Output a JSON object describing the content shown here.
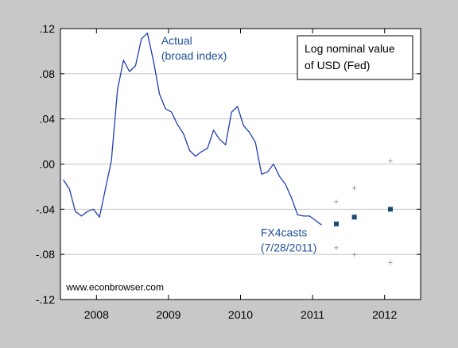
{
  "colors": {
    "outer_background": "#c8c8c8",
    "plot_background": "#ffffff",
    "actual_line": "#1f3fb0",
    "forecast_marker": "#1a4a78",
    "range_marker": "#888888",
    "annotation_text": "#1f4f9a",
    "gridline": "#c4c4c4",
    "axis_text": "#000000"
  },
  "chart_data": {
    "type": "line",
    "title": "",
    "xlabel": "",
    "ylabel": "",
    "ylim": [
      -0.12,
      0.12
    ],
    "y_ticks": [
      0.12,
      0.08,
      0.04,
      0.0,
      -0.04,
      -0.08,
      -0.12
    ],
    "y_tick_labels": [
      ".12",
      ".08",
      ".04",
      ".00",
      "-.04",
      "-.08",
      "-.12"
    ],
    "xlim": [
      2007.5,
      2012.5
    ],
    "x_ticks": [
      2008,
      2009,
      2010,
      2011,
      2012
    ],
    "x_tick_labels": [
      "2008",
      "2009",
      "2010",
      "2011",
      "2012"
    ],
    "horizontal_grid": true,
    "legend": {
      "placement": "top-right",
      "lines": [
        "Log nominal value",
        "of USD (Fed)"
      ]
    },
    "series": [
      {
        "name": "Actual (broad index)",
        "kind": "line",
        "x": [
          2007.54,
          2007.625,
          2007.708,
          2007.792,
          2007.875,
          2007.958,
          2008.042,
          2008.125,
          2008.208,
          2008.292,
          2008.375,
          2008.458,
          2008.542,
          2008.625,
          2008.708,
          2008.792,
          2008.875,
          2008.958,
          2009.042,
          2009.125,
          2009.208,
          2009.292,
          2009.375,
          2009.458,
          2009.542,
          2009.625,
          2009.708,
          2009.792,
          2009.875,
          2009.958,
          2010.042,
          2010.125,
          2010.208,
          2010.292,
          2010.375,
          2010.458,
          2010.542,
          2010.625,
          2010.708,
          2010.792,
          2010.875,
          2010.958,
          2011.042,
          2011.125
        ],
        "y": [
          -0.014,
          -0.022,
          -0.042,
          -0.046,
          -0.042,
          -0.04,
          -0.047,
          -0.022,
          0.003,
          0.066,
          0.092,
          0.082,
          0.087,
          0.111,
          0.116,
          0.091,
          0.062,
          0.049,
          0.046,
          0.035,
          0.027,
          0.012,
          0.007,
          0.011,
          0.014,
          0.03,
          0.022,
          0.017,
          0.046,
          0.051,
          0.034,
          0.028,
          0.019,
          -0.009,
          -0.007,
          0.0,
          -0.011,
          -0.018,
          -0.03,
          -0.045,
          -0.046,
          -0.046,
          -0.05,
          -0.054
        ]
      },
      {
        "name": "FX4casts (7/28/2011)",
        "kind": "point",
        "x": [
          2011.33,
          2011.58,
          2012.08
        ],
        "y": [
          -0.053,
          -0.047,
          -0.04
        ]
      },
      {
        "name": "",
        "kind": "range-mark",
        "x": [
          2011.33,
          2011.33,
          2011.58,
          2011.58,
          2012.08,
          2012.08
        ],
        "y": [
          -0.033,
          -0.074,
          -0.021,
          -0.08,
          0.003,
          -0.087
        ]
      }
    ],
    "annotations": [
      {
        "lines": [
          "Actual",
          "(broad index)"
        ],
        "x": 2008.9,
        "y": 0.106
      },
      {
        "lines": [
          "FX4casts",
          "(7/28/2011)"
        ],
        "x": 2010.28,
        "y": -0.064
      },
      {
        "lines": [
          "www.econbrowser.com"
        ],
        "x": 2007.58,
        "y": -0.112
      }
    ]
  }
}
